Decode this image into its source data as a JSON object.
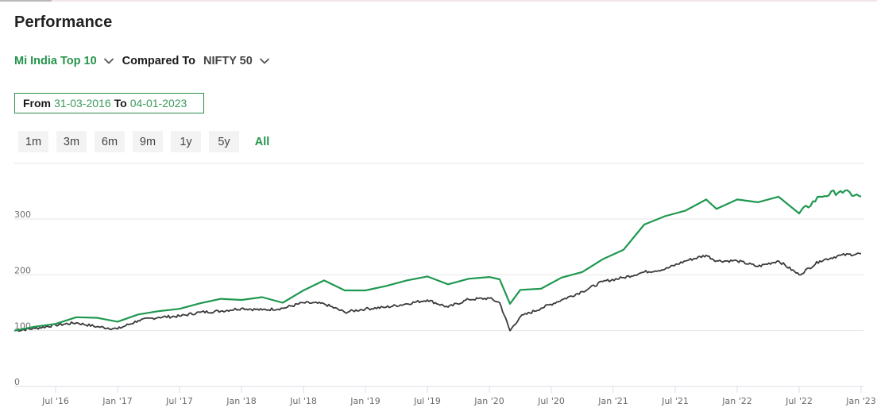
{
  "header": {
    "title": "Performance"
  },
  "comparison": {
    "fund_name": "Mi India Top 10",
    "compared_to_label": "Compared To",
    "index_name": "NIFTY 50",
    "dropdown_icon": "chevron-down-icon"
  },
  "date_range": {
    "from_label": "From",
    "from_value": "31-03-2016",
    "to_label": "To",
    "to_value": "04-01-2023"
  },
  "range_buttons": [
    {
      "label": "1m",
      "active": false
    },
    {
      "label": "3m",
      "active": false
    },
    {
      "label": "6m",
      "active": false
    },
    {
      "label": "9m",
      "active": false
    },
    {
      "label": "1y",
      "active": false
    },
    {
      "label": "5y",
      "active": false
    },
    {
      "label": "All",
      "active": true
    }
  ],
  "colors": {
    "fund_line": "#1f9850",
    "index_line": "#3a3a3d",
    "accent": "#24944a",
    "grid": "#e6e6e6"
  },
  "chart_data": {
    "type": "line",
    "title": "Performance",
    "xlabel": "",
    "ylabel": "",
    "ylim": [
      0,
      400
    ],
    "y_ticks": [
      "0",
      "100",
      "200",
      "300"
    ],
    "x_ticks": [
      "Jul '16",
      "Jan '17",
      "Jul '17",
      "Jan '18",
      "Jul '18",
      "Jan '19",
      "Jul '19",
      "Jan '20",
      "Jul '20",
      "Jan '21",
      "Jul '21",
      "Jan '22",
      "Jul '22",
      "Jan '23"
    ],
    "grid": true,
    "legend": "none (series named in selector above chart)",
    "x": [
      "2016-03",
      "2016-05",
      "2016-07",
      "2016-09",
      "2016-11",
      "2017-01",
      "2017-03",
      "2017-05",
      "2017-07",
      "2017-09",
      "2017-11",
      "2018-01",
      "2018-03",
      "2018-05",
      "2018-07",
      "2018-09",
      "2018-11",
      "2019-01",
      "2019-03",
      "2019-05",
      "2019-07",
      "2019-09",
      "2019-11",
      "2020-01",
      "2020-02",
      "2020-03",
      "2020-04",
      "2020-06",
      "2020-08",
      "2020-10",
      "2020-12",
      "2021-02",
      "2021-04",
      "2021-06",
      "2021-08",
      "2021-10",
      "2021-11",
      "2022-01",
      "2022-03",
      "2022-05",
      "2022-07",
      "2022-09",
      "2022-11",
      "2023-01"
    ],
    "series": [
      {
        "name": "Mi India Top 10",
        "color": "#1f9850",
        "values": [
          100,
          107,
          112,
          124,
          123,
          116,
          129,
          135,
          139,
          149,
          157,
          155,
          160,
          150,
          172,
          190,
          172,
          172,
          180,
          190,
          197,
          183,
          193,
          196,
          192,
          148,
          173,
          175,
          195,
          205,
          228,
          245,
          290,
          305,
          315,
          335,
          318,
          335,
          330,
          340,
          310,
          340,
          350,
          340
        ]
      },
      {
        "name": "NIFTY 50",
        "color": "#3a3a3d",
        "values": [
          100,
          104,
          110,
          114,
          107,
          103,
          118,
          124,
          126,
          133,
          135,
          140,
          137,
          140,
          150,
          148,
          133,
          139,
          142,
          148,
          155,
          142,
          156,
          158,
          150,
          100,
          125,
          140,
          155,
          170,
          188,
          195,
          205,
          210,
          225,
          235,
          225,
          225,
          215,
          225,
          200,
          225,
          235,
          238
        ]
      }
    ]
  }
}
